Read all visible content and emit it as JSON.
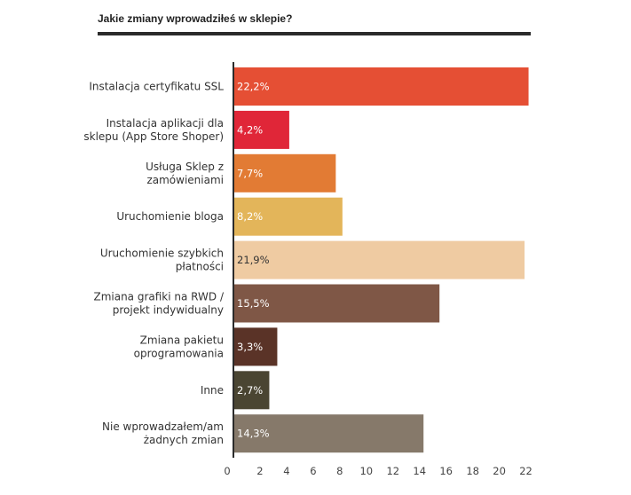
{
  "chart_data": {
    "type": "bar",
    "orientation": "horizontal",
    "title": "Jakie zmiany wprowadziłeś w sklepie?",
    "categories": [
      [
        "Instalacja certyfikatu SSL"
      ],
      [
        "Instalacja aplikacji dla",
        "sklepu (App Store Shoper)"
      ],
      [
        "Usługa Sklep z",
        "zamówieniami"
      ],
      [
        "Uruchomienie bloga"
      ],
      [
        "Uruchomienie szybkich",
        "płatności"
      ],
      [
        "Zmiana grafiki na RWD /",
        "projekt indywidualny"
      ],
      [
        "Zmiana pakietu",
        "oprogramowania"
      ],
      [
        "Inne"
      ],
      [
        "Nie wprowadzałem/am",
        "żadnych zmian"
      ]
    ],
    "values": [
      22.2,
      4.2,
      7.7,
      8.2,
      21.9,
      15.5,
      3.3,
      2.7,
      14.3
    ],
    "value_labels": [
      "22,2%",
      "4,2%",
      "7,7%",
      "8,2%",
      "21,9%",
      "15,5%",
      "3,3%",
      "2,7%",
      "14,3%"
    ],
    "colors": [
      "#e54f34",
      "#e02638",
      "#e27b34",
      "#e3b55a",
      "#efcba2",
      "#7f5746",
      "#5a3327",
      "#4a4532",
      "#86796a"
    ],
    "label_dark": [
      false,
      false,
      false,
      false,
      true,
      false,
      false,
      false,
      false
    ],
    "xticks": [
      0,
      2,
      4,
      6,
      8,
      10,
      12,
      14,
      16,
      18,
      20,
      22
    ],
    "xlim": [
      0,
      22.5
    ],
    "grid": false,
    "legend": "none"
  }
}
